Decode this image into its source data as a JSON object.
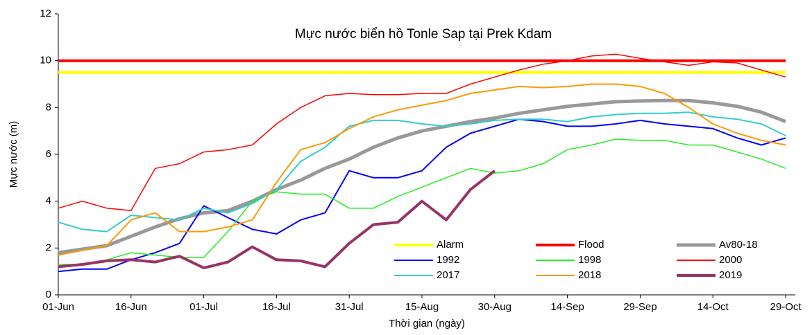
{
  "chart_data": {
    "type": "line",
    "title": "Mực nước biển hồ Tonle Sap tại Prek Kdam",
    "x_label": "Thời gian (ngày)",
    "y_label": "Mực nước (m)",
    "x": [
      0,
      5,
      10,
      15,
      20,
      25,
      30,
      35,
      40,
      45,
      50,
      55,
      60,
      65,
      70,
      75,
      80,
      85,
      90,
      95,
      100,
      105,
      110,
      115,
      120,
      125,
      130,
      135,
      140,
      145,
      150
    ],
    "xlim": [
      0,
      152
    ],
    "xticks": [
      {
        "value": 0,
        "label": "01-Jun"
      },
      {
        "value": 15,
        "label": "16-Jun"
      },
      {
        "value": 30,
        "label": "01-Jul"
      },
      {
        "value": 45,
        "label": "16-Jul"
      },
      {
        "value": 60,
        "label": "31-Jul"
      },
      {
        "value": 75,
        "label": "15-Aug"
      },
      {
        "value": 90,
        "label": "30-Aug"
      },
      {
        "value": 105,
        "label": "14-Sep"
      },
      {
        "value": 120,
        "label": "29-Sep"
      },
      {
        "value": 135,
        "label": "14-Oct"
      },
      {
        "value": 150,
        "label": "29-Oct"
      }
    ],
    "ylim": [
      0,
      12
    ],
    "yticks": [
      0,
      2,
      4,
      6,
      8,
      10,
      12
    ],
    "series": [
      {
        "name": "Alarm",
        "color": "#ffff00",
        "values": [
          9.5,
          9.5,
          9.5,
          9.5,
          9.5,
          9.5,
          9.5,
          9.5,
          9.5,
          9.5,
          9.5,
          9.5,
          9.5,
          9.5,
          9.5,
          9.5,
          9.5,
          9.5,
          9.5,
          9.5,
          9.5,
          9.5,
          9.5,
          9.5,
          9.5,
          9.5,
          9.5,
          9.5,
          9.5,
          9.5,
          9.5
        ]
      },
      {
        "name": "Flood",
        "color": "#ff0000",
        "values": [
          10,
          10,
          10,
          10,
          10,
          10,
          10,
          10,
          10,
          10,
          10,
          10,
          10,
          10,
          10,
          10,
          10,
          10,
          10,
          10,
          10,
          10,
          10,
          10,
          10,
          10,
          10,
          10,
          10,
          10,
          10
        ]
      },
      {
        "name": "Av80-18",
        "color": "#999999",
        "values": [
          1.8,
          1.95,
          2.1,
          2.5,
          2.9,
          3.25,
          3.5,
          3.6,
          4.0,
          4.5,
          4.9,
          5.4,
          5.8,
          6.3,
          6.7,
          7.0,
          7.2,
          7.4,
          7.55,
          7.75,
          7.9,
          8.05,
          8.15,
          8.25,
          8.28,
          8.3,
          8.3,
          8.2,
          8.05,
          7.8,
          7.4
        ]
      },
      {
        "name": "1992",
        "color": "#0000ff",
        "values": [
          1.0,
          1.1,
          1.1,
          1.5,
          1.8,
          2.2,
          3.8,
          3.3,
          2.8,
          2.6,
          3.2,
          3.5,
          5.3,
          5.0,
          5.0,
          5.3,
          6.3,
          6.9,
          7.2,
          7.5,
          7.4,
          7.2,
          7.2,
          7.3,
          7.45,
          7.3,
          7.2,
          7.1,
          6.7,
          6.4,
          6.7
        ]
      },
      {
        "name": "1998",
        "color": "#22ee22",
        "values": [
          1.3,
          1.3,
          1.5,
          1.8,
          1.7,
          1.6,
          1.6,
          2.7,
          4.0,
          4.4,
          4.3,
          4.3,
          3.7,
          3.7,
          4.2,
          4.6,
          5.0,
          5.4,
          5.2,
          5.3,
          5.6,
          6.2,
          6.4,
          6.65,
          6.6,
          6.6,
          6.4,
          6.4,
          6.1,
          5.8,
          5.4
        ]
      },
      {
        "name": "2000",
        "color": "#ff0000",
        "values": [
          3.7,
          4.0,
          3.7,
          3.6,
          5.4,
          5.6,
          6.1,
          6.2,
          6.4,
          7.3,
          8.0,
          8.5,
          8.6,
          8.55,
          8.55,
          8.6,
          8.6,
          9.0,
          9.3,
          9.6,
          9.85,
          10.0,
          10.2,
          10.28,
          10.1,
          9.95,
          9.8,
          9.95,
          9.9,
          9.6,
          9.3
        ]
      },
      {
        "name": "2017",
        "color": "#33cccc",
        "values": [
          3.1,
          2.8,
          2.7,
          3.4,
          3.3,
          3.2,
          3.7,
          3.5,
          3.9,
          4.5,
          5.7,
          6.3,
          7.2,
          7.45,
          7.45,
          7.3,
          7.2,
          7.3,
          7.45,
          7.5,
          7.5,
          7.4,
          7.6,
          7.7,
          7.75,
          7.75,
          7.8,
          7.6,
          7.5,
          7.3,
          6.8
        ]
      },
      {
        "name": "2018",
        "color": "#ff9900",
        "values": [
          1.7,
          1.9,
          2.1,
          3.2,
          3.5,
          2.7,
          2.7,
          2.9,
          3.2,
          4.8,
          6.2,
          6.5,
          7.1,
          7.6,
          7.9,
          8.1,
          8.3,
          8.6,
          8.75,
          8.9,
          8.85,
          8.9,
          9.0,
          9.0,
          8.9,
          8.6,
          8.0,
          7.3,
          6.9,
          6.6,
          6.4
        ]
      },
      {
        "name": "2019",
        "color": "#993366",
        "values": [
          1.2,
          1.3,
          1.45,
          1.5,
          1.4,
          1.65,
          1.15,
          1.4,
          2.05,
          1.5,
          1.45,
          1.2,
          2.2,
          3.0,
          3.1,
          4.0,
          3.2,
          4.5,
          5.3,
          null,
          null,
          null,
          null,
          null,
          null,
          null,
          null,
          null,
          null,
          null,
          null
        ]
      }
    ]
  }
}
